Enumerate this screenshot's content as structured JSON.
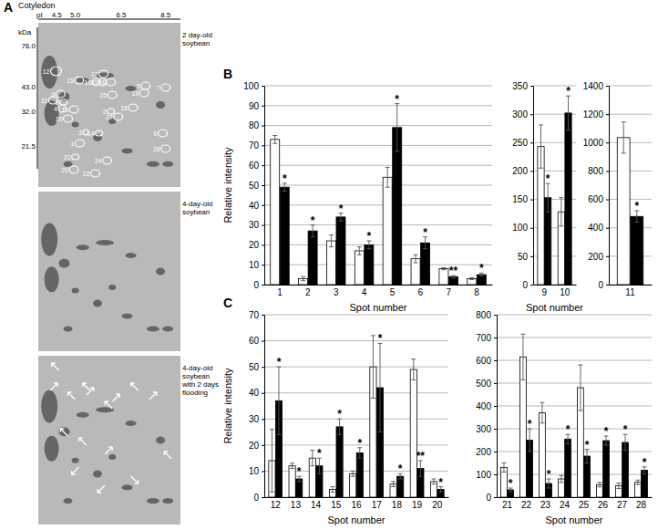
{
  "gel": {
    "panel_label": "A",
    "tissue": "Cotyledon",
    "x_label": "pI",
    "x_ticks": [
      "4.5",
      "5.0",
      "6.5",
      "8.5"
    ],
    "y_label": "kDa",
    "y_ticks": [
      "76.0",
      "43.0",
      "32.0",
      "21.5"
    ],
    "gels": [
      [
        "2 day-old",
        "soybean"
      ],
      [
        "4-day-old",
        "soybean"
      ],
      [
        "4-day-old",
        "soybean",
        "with 2 days",
        "flooding"
      ]
    ],
    "spots": [
      "12",
      "11",
      "8",
      "15",
      "16",
      "23",
      "26",
      "17",
      "5",
      "19",
      "7",
      "13",
      "4",
      "10",
      "9",
      "25",
      "2",
      "27",
      "18",
      "3",
      "14",
      "1",
      "6",
      "28",
      "21",
      "20",
      "22",
      "24"
    ]
  },
  "chart_data": [
    {
      "type": "bar",
      "panel_label": "B",
      "y_label": "Relative intensity",
      "x_label": "Spot number",
      "categories": [
        "1",
        "2",
        "3",
        "4",
        "5",
        "6",
        "7",
        "8"
      ],
      "ylim": [
        0,
        100
      ],
      "yticks": [
        0,
        10,
        20,
        30,
        40,
        50,
        60,
        70,
        80,
        90,
        100
      ],
      "grid": true,
      "series": [
        {
          "color": "#ffffff",
          "values": [
            73,
            3,
            22,
            17,
            54,
            13,
            8,
            3
          ],
          "errors": [
            2,
            1,
            3,
            2,
            5,
            2,
            0.5,
            0.5
          ]
        },
        {
          "color": "#000000",
          "values": [
            49,
            27,
            34,
            20,
            79,
            21,
            4,
            5
          ],
          "errors": [
            2,
            3,
            2,
            2,
            12,
            3,
            0.5,
            0.8
          ]
        }
      ],
      "annotations": [
        "*",
        "*",
        "*",
        "*",
        "*",
        "*",
        "**",
        "*"
      ]
    },
    {
      "type": "bar",
      "x_label": "Spot number",
      "categories": [
        "9",
        "10"
      ],
      "ylim": [
        0,
        350
      ],
      "yticks": [
        0,
        50,
        100,
        150,
        200,
        250,
        300,
        350
      ],
      "grid": true,
      "series": [
        {
          "color": "#ffffff",
          "values": [
            243,
            128
          ],
          "errors": [
            38,
            25
          ]
        },
        {
          "color": "#000000",
          "values": [
            153,
            302
          ],
          "errors": [
            25,
            30
          ]
        }
      ],
      "annotations": [
        "*",
        "*"
      ]
    },
    {
      "type": "bar",
      "categories": [
        "11"
      ],
      "ylim": [
        0,
        1400
      ],
      "yticks": [
        0,
        200,
        400,
        600,
        800,
        1000,
        1200,
        1400
      ],
      "grid": true,
      "series": [
        {
          "color": "#ffffff",
          "values": [
            1035
          ],
          "errors": [
            110
          ]
        },
        {
          "color": "#000000",
          "values": [
            480
          ],
          "errors": [
            40
          ]
        }
      ],
      "annotations": [
        "*"
      ]
    },
    {
      "type": "bar",
      "panel_label": "C",
      "y_label": "Relative intensity",
      "x_label": "Spot number",
      "categories": [
        "12",
        "13",
        "14",
        "15",
        "16",
        "17",
        "18",
        "19",
        "20"
      ],
      "ylim": [
        0,
        70
      ],
      "yticks": [
        0,
        10,
        20,
        30,
        40,
        50,
        60,
        70
      ],
      "grid": true,
      "series": [
        {
          "color": "#ffffff",
          "values": [
            14,
            12,
            15,
            3,
            9,
            50,
            5,
            49,
            6
          ],
          "errors": [
            12,
            1,
            3,
            1,
            1,
            12,
            1,
            4,
            1
          ]
        },
        {
          "color": "#000000",
          "values": [
            37,
            7,
            12,
            27,
            17,
            42,
            8,
            11,
            3
          ],
          "errors": [
            13,
            1,
            3,
            3,
            2,
            17,
            1,
            3,
            1
          ]
        }
      ],
      "annotations": [
        "*",
        "*",
        "*",
        "*",
        "*",
        "*",
        "*",
        "**",
        "*"
      ]
    },
    {
      "type": "bar",
      "x_label": "Spot number",
      "categories": [
        "21",
        "22",
        "23",
        "24",
        "25",
        "26",
        "27",
        "28"
      ],
      "ylim": [
        0,
        800
      ],
      "yticks": [
        0,
        100,
        200,
        300,
        400,
        500,
        600,
        700,
        800
      ],
      "grid": true,
      "series": [
        {
          "color": "#ffffff",
          "values": [
            130,
            615,
            370,
            80,
            480,
            55,
            50,
            65
          ],
          "errors": [
            20,
            100,
            45,
            15,
            100,
            10,
            12,
            10
          ]
        },
        {
          "color": "#000000",
          "values": [
            32,
            250,
            60,
            255,
            180,
            248,
            240,
            118
          ],
          "errors": [
            8,
            50,
            20,
            20,
            30,
            20,
            35,
            15
          ]
        }
      ],
      "annotations": [
        "*",
        "*",
        "*",
        "*",
        "*",
        "*",
        "*",
        "*"
      ]
    }
  ]
}
